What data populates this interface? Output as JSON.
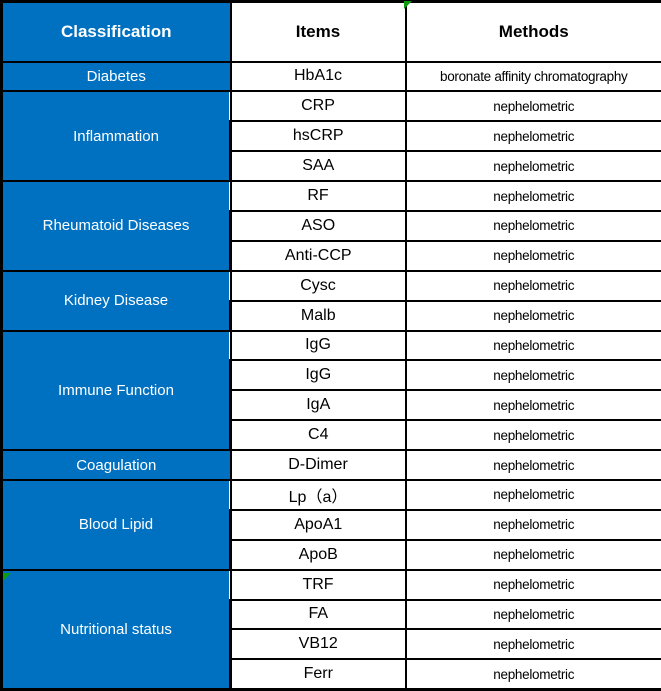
{
  "colors": {
    "classification_bg": "#0071C1",
    "classification_text": "#FFFFFF",
    "border": "#000000",
    "marker_green": "#0F9A0F"
  },
  "table": {
    "headers": {
      "classification": "Classification",
      "items": "Items",
      "methods": "Methods"
    },
    "groups": [
      {
        "classification": "Diabetes",
        "rows": [
          {
            "item": "HbA1c",
            "method": "boronate affinity chromatography"
          }
        ]
      },
      {
        "classification": "Inflammation",
        "rows": [
          {
            "item": "CRP",
            "method": "nephelometric"
          },
          {
            "item": "hsCRP",
            "method": "nephelometric"
          },
          {
            "item": "SAA",
            "method": "nephelometric"
          }
        ]
      },
      {
        "classification": "Rheumatoid Diseases",
        "rows": [
          {
            "item": "RF",
            "method": "nephelometric"
          },
          {
            "item": "ASO",
            "method": "nephelometric"
          },
          {
            "item": "Anti-CCP",
            "method": "nephelometric"
          }
        ]
      },
      {
        "classification": "Kidney Disease",
        "rows": [
          {
            "item": "Cysc",
            "method": "nephelometric"
          },
          {
            "item": "Malb",
            "method": "nephelometric"
          }
        ]
      },
      {
        "classification": "Immune Function",
        "rows": [
          {
            "item": "IgG",
            "method": "nephelometric"
          },
          {
            "item": "IgG",
            "method": "nephelometric"
          },
          {
            "item": "IgA",
            "method": "nephelometric"
          },
          {
            "item": "C4",
            "method": "nephelometric"
          }
        ]
      },
      {
        "classification": "Coagulation",
        "rows": [
          {
            "item": "D-Dimer",
            "method": "nephelometric"
          }
        ]
      },
      {
        "classification": "Blood Lipid",
        "rows": [
          {
            "item": "Lp（a）",
            "method": "nephelometric"
          },
          {
            "item": "ApoA1",
            "method": "nephelometric"
          },
          {
            "item": "ApoB",
            "method": "nephelometric"
          }
        ]
      },
      {
        "classification": "Nutritional status",
        "rows": [
          {
            "item": "TRF",
            "method": "nephelometric"
          },
          {
            "item": "FA",
            "method": "nephelometric"
          },
          {
            "item": "VB12",
            "method": "nephelometric"
          },
          {
            "item": "Ferr",
            "method": "nephelometric"
          }
        ]
      }
    ]
  }
}
